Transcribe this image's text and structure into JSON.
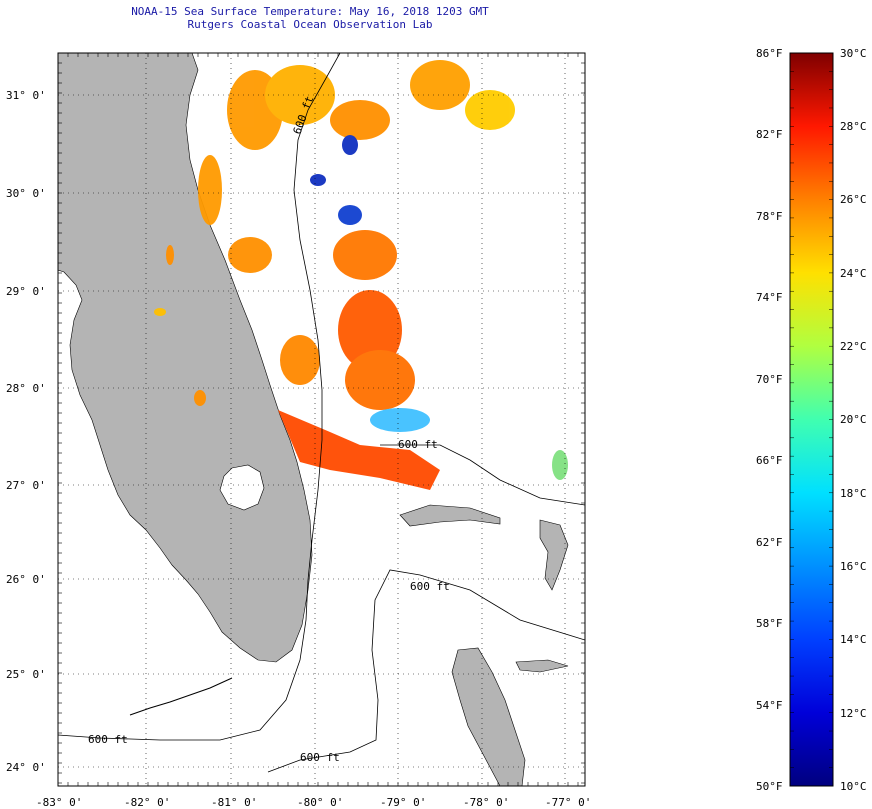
{
  "header": {
    "title_line1": "NOAA-15 Sea Surface Temperature:  May 16, 2018 1203 GMT",
    "title_line2": "Rutgers Coastal Ocean Observation Lab"
  },
  "map": {
    "lat_labels": [
      "31° 0'",
      "30° 0'",
      "29° 0'",
      "28° 0'",
      "27° 0'",
      "26° 0'",
      "25° 0'",
      "24° 0'"
    ],
    "lon_labels": [
      "-83° 0'",
      "-82° 0'",
      "-81° 0'",
      "-80° 0'",
      "-79° 0'",
      "-78° 0'",
      "-77° 0'"
    ],
    "contour_labels": [
      "600 ft",
      "600 ft",
      "600 ft",
      "600 ft",
      "600 ft"
    ],
    "land_color": "#b4b4b4",
    "coast_color": "#000000"
  },
  "colorbar": {
    "f_labels": [
      "86°F",
      "82°F",
      "78°F",
      "74°F",
      "70°F",
      "66°F",
      "62°F",
      "58°F",
      "54°F",
      "50°F"
    ],
    "c_labels": [
      "30°C",
      "28°C",
      "26°C",
      "24°C",
      "22°C",
      "20°C",
      "18°C",
      "16°C",
      "14°C",
      "12°C",
      "10°C"
    ]
  }
}
